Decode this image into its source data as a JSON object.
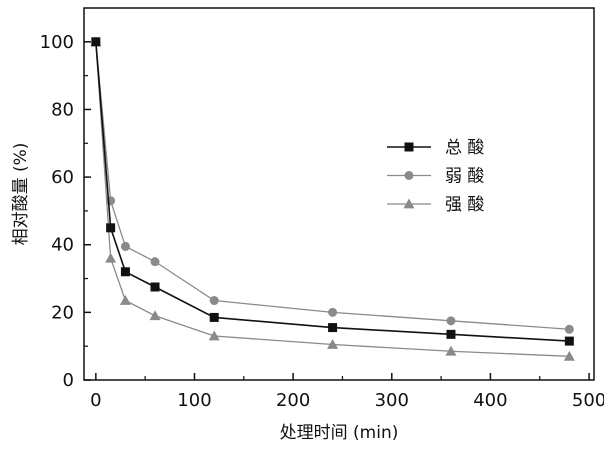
{
  "chart_data": {
    "type": "line",
    "xlabel": "处理时间 (min)",
    "ylabel": "相对酸量 (%)",
    "xlim": [
      -12,
      505
    ],
    "ylim": [
      0,
      110
    ],
    "xticks": [
      0,
      100,
      200,
      300,
      400,
      500
    ],
    "yticks": [
      0,
      20,
      40,
      60,
      80,
      100
    ],
    "grid": false,
    "legend_position": "center-right",
    "series": [
      {
        "name": "总 酸",
        "marker": "square",
        "color": "#111111",
        "x": [
          0,
          15,
          30,
          60,
          120,
          240,
          360,
          480
        ],
        "y": [
          100,
          45,
          32,
          27.5,
          18.5,
          15.5,
          13.5,
          11.5
        ]
      },
      {
        "name": "弱 酸",
        "marker": "circle",
        "color": "#8a8a8a",
        "x": [
          0,
          15,
          30,
          60,
          120,
          240,
          360,
          480
        ],
        "y": [
          100,
          53,
          39.5,
          35,
          23.5,
          20,
          17.5,
          15
        ]
      },
      {
        "name": "强 酸",
        "marker": "triangle",
        "color": "#8a8a8a",
        "x": [
          0,
          15,
          30,
          60,
          120,
          240,
          360,
          480
        ],
        "y": [
          100,
          36,
          23.5,
          19,
          13,
          10.5,
          8.5,
          7
        ]
      }
    ]
  }
}
